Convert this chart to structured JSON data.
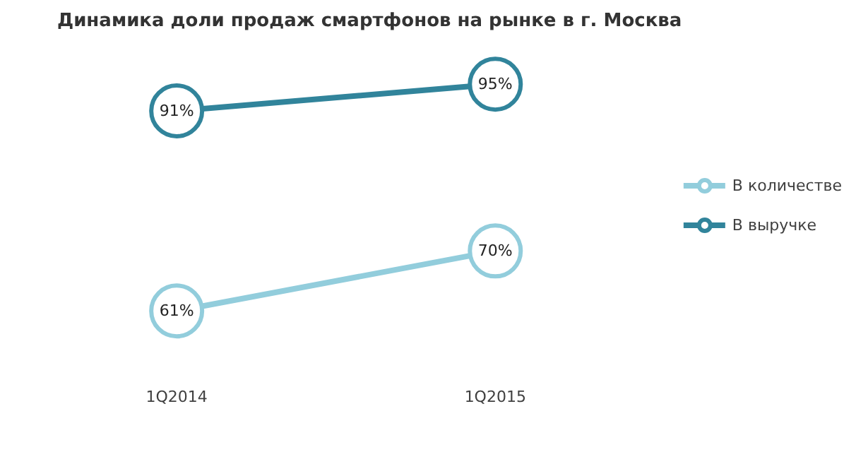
{
  "chart_data": {
    "type": "line",
    "title": "Динамика доли продаж смартфонов на рынке в г. Москва",
    "categories": [
      "1Q2014",
      "1Q2015"
    ],
    "tick_labels": "x",
    "grid": false,
    "legend": "right",
    "marker": "circle",
    "line_style": "solid",
    "series": [
      {
        "name": "В количестве",
        "color": "#92cddc",
        "values": [
          61,
          70
        ],
        "value_labels": [
          "61%",
          "70%"
        ]
      },
      {
        "name": "В выручке",
        "color": "#31849b",
        "values": [
          91,
          95
        ],
        "value_labels": [
          "91%",
          "95%"
        ]
      }
    ]
  }
}
